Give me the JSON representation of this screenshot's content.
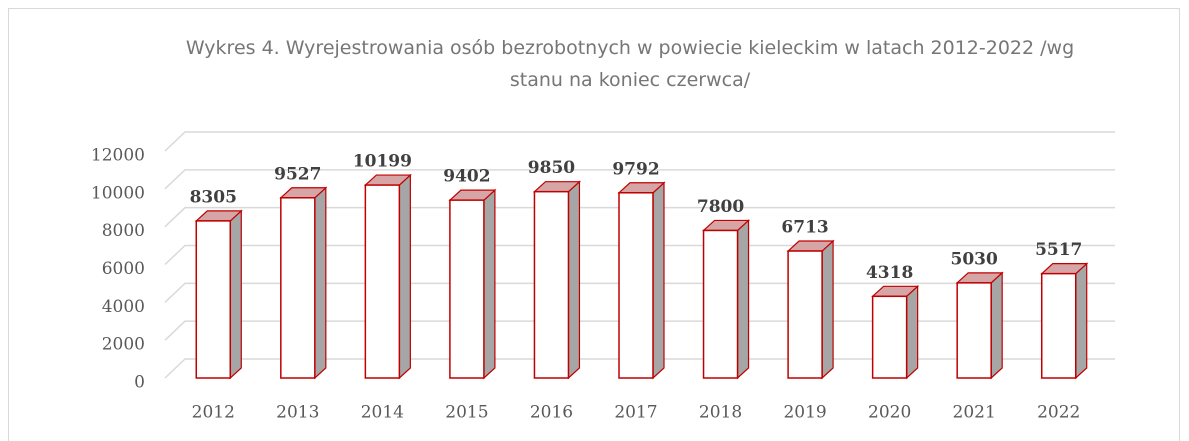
{
  "chart_data": {
    "type": "bar3d",
    "title": "Wykres 4. Wyrejestrowania osób bezrobotnych w powiecie kieleckim w latach 2012-2022 /wg stanu na koniec czerwca/",
    "categories": [
      "2012",
      "2013",
      "2014",
      "2015",
      "2016",
      "2017",
      "2018",
      "2019",
      "2020",
      "2021",
      "2022"
    ],
    "values": [
      8305,
      9527,
      10199,
      9402,
      9850,
      9792,
      7800,
      6713,
      4318,
      5030,
      5517
    ],
    "color": "#ffffff",
    "edge_color": "#c00000",
    "ylim": [
      0,
      12000
    ],
    "yticks": [
      0,
      2000,
      4000,
      6000,
      8000,
      10000,
      12000
    ],
    "grid": true
  }
}
